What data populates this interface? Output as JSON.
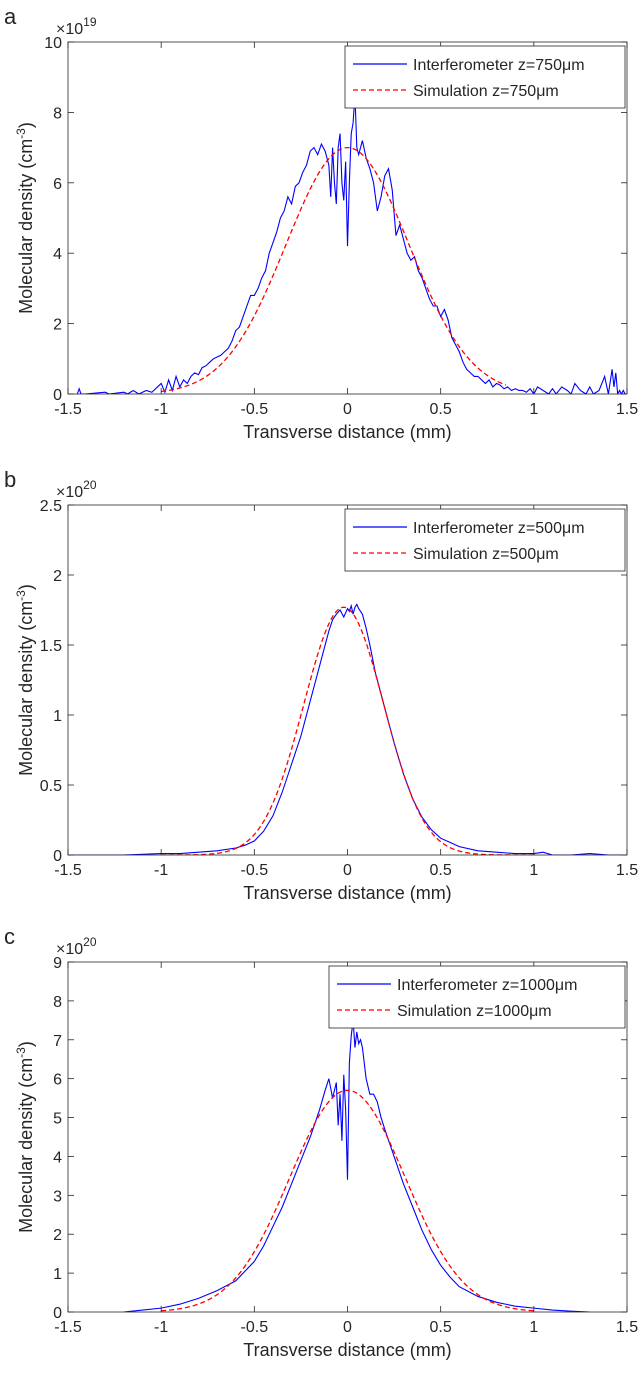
{
  "chart_data": [
    {
      "panel_label": "a",
      "type": "line",
      "exponent_base": "×10",
      "exponent_power": "19",
      "xlabel": "Transverse distance (mm)",
      "ylabel_main": "Molecular density (cm",
      "ylabel_sup": "-3",
      "ylabel_tail": ")",
      "xlim": [
        -1.5,
        1.5
      ],
      "ylim": [
        0,
        10
      ],
      "xticks": [
        -1.5,
        -1,
        -0.5,
        0,
        0.5,
        1,
        1.5
      ],
      "xtick_labels": [
        "-1.5",
        "-1",
        "-0.5",
        "0",
        "0.5",
        "1",
        "1.5"
      ],
      "yticks": [
        0,
        2,
        4,
        6,
        8,
        10
      ],
      "ytick_labels": [
        "0",
        "2",
        "4",
        "6",
        "8",
        "10"
      ],
      "legend_position": "top-right",
      "grid": false,
      "series": [
        {
          "name": "Interferometer z=750μm",
          "color": "#0000ff",
          "style": "solid",
          "x": [
            -1.45,
            -1.44,
            -1.43,
            -1.41,
            -1.3,
            -1.28,
            -1.2,
            -1.18,
            -1.15,
            -1.12,
            -1.08,
            -1.05,
            -1.02,
            -1.0,
            -0.98,
            -0.96,
            -0.94,
            -0.92,
            -0.9,
            -0.88,
            -0.86,
            -0.84,
            -0.82,
            -0.8,
            -0.78,
            -0.76,
            -0.74,
            -0.72,
            -0.7,
            -0.68,
            -0.66,
            -0.64,
            -0.62,
            -0.6,
            -0.58,
            -0.56,
            -0.54,
            -0.52,
            -0.5,
            -0.48,
            -0.46,
            -0.44,
            -0.42,
            -0.4,
            -0.38,
            -0.36,
            -0.34,
            -0.32,
            -0.3,
            -0.28,
            -0.26,
            -0.24,
            -0.22,
            -0.2,
            -0.18,
            -0.16,
            -0.14,
            -0.12,
            -0.1,
            -0.09,
            -0.08,
            -0.07,
            -0.06,
            -0.05,
            -0.04,
            -0.03,
            -0.02,
            -0.01,
            0.0,
            0.01,
            0.02,
            0.03,
            0.04,
            0.05,
            0.06,
            0.08,
            0.1,
            0.12,
            0.14,
            0.16,
            0.18,
            0.2,
            0.22,
            0.24,
            0.26,
            0.28,
            0.3,
            0.32,
            0.34,
            0.36,
            0.38,
            0.4,
            0.42,
            0.44,
            0.46,
            0.48,
            0.5,
            0.52,
            0.54,
            0.56,
            0.58,
            0.6,
            0.62,
            0.64,
            0.66,
            0.68,
            0.7,
            0.72,
            0.74,
            0.76,
            0.78,
            0.8,
            0.82,
            0.84,
            0.86,
            0.88,
            0.9,
            0.92,
            0.94,
            0.96,
            0.98,
            1.0,
            1.02,
            1.05,
            1.08,
            1.1,
            1.12,
            1.15,
            1.18,
            1.2,
            1.22,
            1.25,
            1.28,
            1.3,
            1.32,
            1.35,
            1.38,
            1.4,
            1.42,
            1.43,
            1.44,
            1.45,
            1.46,
            1.47,
            1.48,
            1.49
          ],
          "y": [
            0.0,
            0.15,
            0.0,
            0.0,
            0.05,
            0.0,
            0.05,
            0.0,
            0.1,
            0.0,
            0.1,
            0.05,
            0.2,
            0.3,
            0.05,
            0.4,
            0.1,
            0.5,
            0.2,
            0.4,
            0.3,
            0.5,
            0.6,
            0.55,
            0.75,
            0.8,
            0.9,
            1.0,
            1.05,
            1.1,
            1.2,
            1.3,
            1.5,
            1.8,
            1.9,
            2.2,
            2.5,
            2.8,
            2.8,
            3.0,
            3.3,
            3.5,
            4.0,
            4.3,
            4.6,
            5.0,
            5.2,
            5.6,
            5.4,
            5.9,
            6.0,
            6.3,
            6.5,
            6.9,
            7.0,
            6.8,
            7.1,
            6.9,
            6.5,
            5.6,
            7.0,
            6.0,
            5.4,
            7.0,
            7.4,
            6.0,
            5.5,
            6.6,
            4.2,
            6.0,
            7.4,
            7.7,
            8.5,
            7.0,
            6.8,
            7.2,
            6.7,
            6.4,
            6.0,
            5.2,
            5.6,
            6.2,
            6.4,
            5.8,
            4.5,
            4.8,
            4.4,
            4.0,
            3.8,
            3.9,
            3.5,
            3.3,
            3.0,
            2.7,
            2.5,
            2.5,
            2.2,
            2.4,
            2.1,
            1.6,
            1.4,
            1.2,
            0.9,
            0.7,
            0.6,
            0.5,
            0.5,
            0.4,
            0.3,
            0.4,
            0.2,
            0.3,
            0.25,
            0.15,
            0.2,
            0.1,
            0.15,
            0.1,
            0.1,
            0.05,
            0.15,
            0.0,
            0.2,
            0.1,
            0.0,
            0.15,
            0.0,
            0.2,
            0.1,
            0.0,
            0.3,
            0.1,
            0.0,
            0.2,
            0.0,
            0.1,
            0.5,
            0.0,
            0.7,
            0.2,
            0.6,
            0.0,
            0.1,
            0.0,
            0.1,
            0.0
          ]
        },
        {
          "name": "Simulation z=750μm",
          "color": "#ff0000",
          "style": "dashed",
          "gaussian": {
            "amplitude": 7.0,
            "center": 0.0,
            "sigma": 0.33,
            "xmin": -1.0,
            "xmax": 0.85
          }
        }
      ]
    },
    {
      "panel_label": "b",
      "type": "line",
      "exponent_base": "×10",
      "exponent_power": "20",
      "xlabel": "Transverse distance (mm)",
      "ylabel_main": "Molecular density (cm",
      "ylabel_sup": "-3",
      "ylabel_tail": ")",
      "xlim": [
        -1.5,
        1.5
      ],
      "ylim": [
        0,
        2.5
      ],
      "xticks": [
        -1.5,
        -1,
        -0.5,
        0,
        0.5,
        1,
        1.5
      ],
      "xtick_labels": [
        "-1.5",
        "-1",
        "-0.5",
        "0",
        "0.5",
        "1",
        "1.5"
      ],
      "yticks": [
        0,
        0.5,
        1,
        1.5,
        2,
        2.5
      ],
      "ytick_labels": [
        "0",
        "0.5",
        "1",
        "1.5",
        "2",
        "2.5"
      ],
      "legend_position": "top-right",
      "grid": false,
      "series": [
        {
          "name": "Interferometer z=500μm",
          "color": "#0000ff",
          "style": "solid",
          "x": [
            -1.5,
            -1.2,
            -1.0,
            -0.9,
            -0.8,
            -0.7,
            -0.6,
            -0.55,
            -0.5,
            -0.45,
            -0.4,
            -0.35,
            -0.3,
            -0.25,
            -0.2,
            -0.15,
            -0.12,
            -0.1,
            -0.08,
            -0.06,
            -0.04,
            -0.02,
            0.0,
            0.01,
            0.02,
            0.03,
            0.04,
            0.05,
            0.06,
            0.08,
            0.1,
            0.12,
            0.15,
            0.2,
            0.25,
            0.3,
            0.35,
            0.4,
            0.45,
            0.5,
            0.55,
            0.6,
            0.7,
            0.8,
            0.9,
            1.0,
            1.05,
            1.1,
            1.2,
            1.3,
            1.4,
            1.5
          ],
          "y": [
            0.0,
            0.0,
            0.01,
            0.01,
            0.02,
            0.03,
            0.05,
            0.07,
            0.1,
            0.17,
            0.28,
            0.45,
            0.65,
            0.85,
            1.1,
            1.35,
            1.5,
            1.6,
            1.68,
            1.72,
            1.75,
            1.7,
            1.76,
            1.74,
            1.78,
            1.72,
            1.77,
            1.79,
            1.76,
            1.72,
            1.62,
            1.5,
            1.3,
            1.05,
            0.8,
            0.58,
            0.4,
            0.27,
            0.18,
            0.12,
            0.09,
            0.06,
            0.03,
            0.02,
            0.01,
            0.01,
            0.02,
            0.0,
            0.0,
            0.01,
            0.0,
            0.0
          ]
        },
        {
          "name": "Simulation z=500μm",
          "color": "#ff0000",
          "style": "dashed",
          "gaussian": {
            "amplitude": 1.77,
            "center": -0.02,
            "sigma": 0.215,
            "xmin": -1.0,
            "xmax": 1.0
          }
        }
      ]
    },
    {
      "panel_label": "c",
      "type": "line",
      "exponent_base": "×10",
      "exponent_power": "20",
      "xlabel": "Transverse distance (mm)",
      "ylabel_main": "Molecular density (cm",
      "ylabel_sup": "-3",
      "ylabel_tail": ")",
      "xlim": [
        -1.5,
        1.5
      ],
      "ylim": [
        0,
        9
      ],
      "xticks": [
        -1.5,
        -1,
        -0.5,
        0,
        0.5,
        1,
        1.5
      ],
      "xtick_labels": [
        "-1.5",
        "-1",
        "-0.5",
        "0",
        "0.5",
        "1",
        "1.5"
      ],
      "yticks": [
        0,
        1,
        2,
        3,
        4,
        5,
        6,
        7,
        8,
        9
      ],
      "ytick_labels": [
        "0",
        "1",
        "2",
        "3",
        "4",
        "5",
        "6",
        "7",
        "8",
        "9"
      ],
      "legend_position": "top-right",
      "grid": false,
      "series": [
        {
          "name": "Interferometer z=1000μm",
          "color": "#0000ff",
          "style": "solid",
          "x": [
            -1.2,
            -1.1,
            -1.0,
            -0.9,
            -0.8,
            -0.7,
            -0.6,
            -0.5,
            -0.45,
            -0.4,
            -0.35,
            -0.3,
            -0.25,
            -0.2,
            -0.15,
            -0.12,
            -0.1,
            -0.08,
            -0.06,
            -0.05,
            -0.04,
            -0.03,
            -0.02,
            -0.01,
            0.0,
            0.01,
            0.02,
            0.03,
            0.04,
            0.05,
            0.06,
            0.07,
            0.08,
            0.1,
            0.12,
            0.14,
            0.16,
            0.18,
            0.2,
            0.25,
            0.3,
            0.35,
            0.4,
            0.45,
            0.5,
            0.55,
            0.6,
            0.7,
            0.8,
            0.9,
            1.0,
            1.1,
            1.2,
            1.3
          ],
          "y": [
            0.0,
            0.05,
            0.1,
            0.2,
            0.35,
            0.55,
            0.8,
            1.3,
            1.7,
            2.2,
            2.7,
            3.3,
            3.9,
            4.5,
            5.2,
            5.7,
            6.0,
            5.5,
            5.9,
            4.8,
            5.6,
            4.4,
            6.1,
            5.2,
            3.4,
            6.4,
            7.1,
            7.5,
            6.8,
            7.2,
            6.9,
            7.0,
            6.8,
            6.0,
            5.6,
            5.6,
            5.4,
            5.0,
            4.7,
            4.0,
            3.3,
            2.7,
            2.1,
            1.6,
            1.2,
            0.9,
            0.65,
            0.4,
            0.25,
            0.15,
            0.1,
            0.05,
            0.02,
            0.0
          ]
        },
        {
          "name": "Simulation z=1000μm",
          "color": "#ff0000",
          "style": "dashed",
          "gaussian": {
            "amplitude": 5.7,
            "center": 0.0,
            "sigma": 0.31,
            "xmin": -1.0,
            "xmax": 1.0
          }
        }
      ]
    }
  ]
}
